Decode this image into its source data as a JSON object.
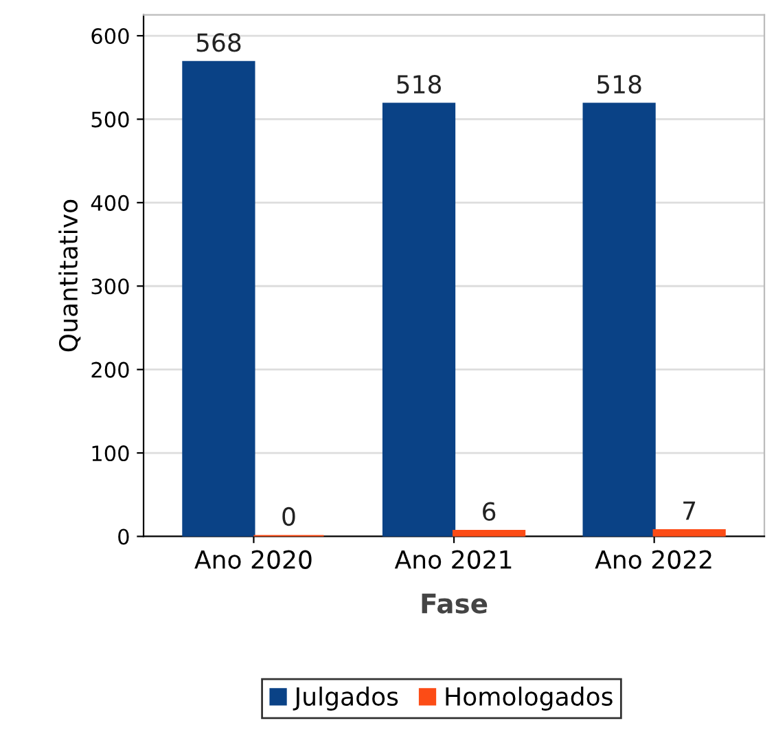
{
  "chart_data": {
    "type": "bar",
    "xlabel": "Fase",
    "ylabel": "Quantitativo",
    "categories": [
      "Ano 2020",
      "Ano 2021",
      "Ano 2022"
    ],
    "series": [
      {
        "name": "Julgados",
        "color": "#0a4286",
        "values": [
          568,
          518,
          518
        ]
      },
      {
        "name": "Homologados",
        "color": "#fc4c16",
        "values": [
          0,
          6,
          7
        ]
      }
    ],
    "ylim": [
      0,
      625
    ],
    "yticks": [
      0,
      100,
      200,
      300,
      400,
      500,
      600
    ],
    "grid": "y",
    "legend": "bottom",
    "data_labels": true
  }
}
